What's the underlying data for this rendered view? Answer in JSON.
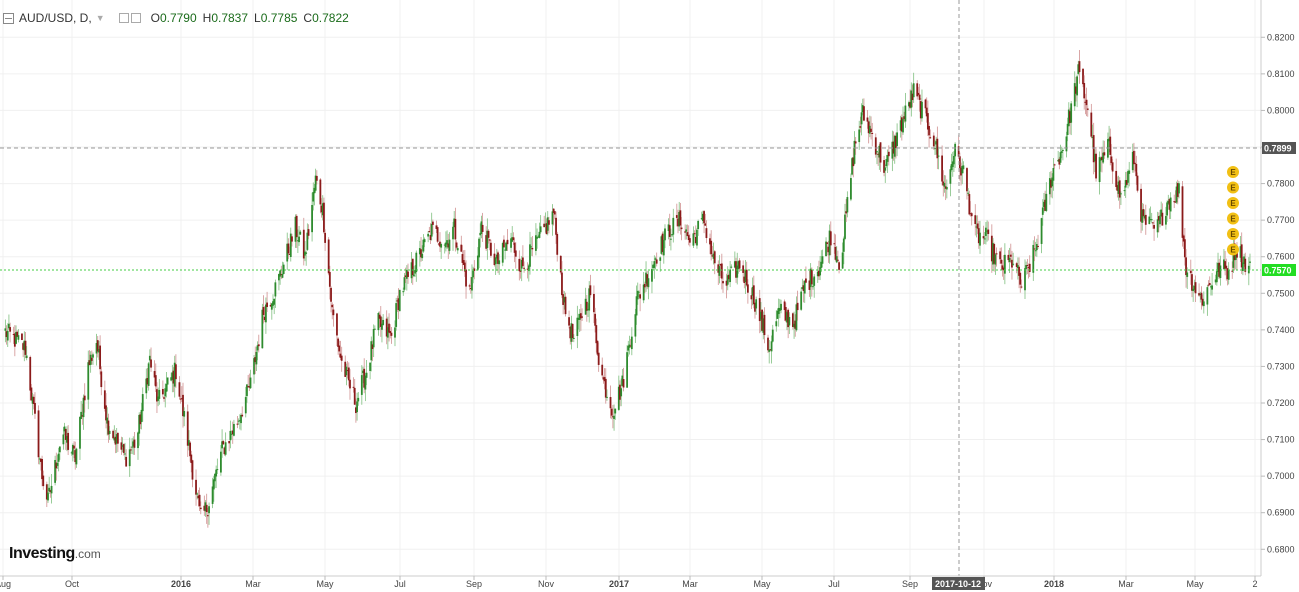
{
  "header": {
    "symbol": "AUD/USD, D,",
    "open_label": "O",
    "open": "0.7790",
    "high_label": "H",
    "high": "0.7837",
    "low_label": "L",
    "low": "0.7785",
    "close_label": "C",
    "close": "0.7822"
  },
  "logo": {
    "brand": "Investing",
    "suffix": ".com"
  },
  "colors": {
    "up": "#2e8b2e",
    "down": "#8b1a1a",
    "current_line": "#44cc44",
    "current_tag": "#22dd22",
    "crosshair": "#999999",
    "earnings_badge": "#f2c014"
  },
  "crosshair": {
    "price_label": "0.7899",
    "date_label": "2017-10-12"
  },
  "earnings_badges": [
    "E",
    "E",
    "E",
    "E",
    "E",
    "E"
  ],
  "chart_data": {
    "type": "candlestick",
    "symbol": "AUD/USD",
    "interval": "D",
    "ylim": [
      0.675,
      0.823
    ],
    "y_ticks": [
      "0.8200",
      "0.8100",
      "0.8000",
      "0.7900",
      "0.7800",
      "0.7700",
      "0.7600",
      "0.7500",
      "0.7400",
      "0.7300",
      "0.7200",
      "0.7100",
      "0.7000",
      "0.6900",
      "0.6800"
    ],
    "x_ticks": [
      "Aug",
      "Oct",
      "2016",
      "Mar",
      "May",
      "Jul",
      "Sep",
      "Nov",
      "2017",
      "Mar",
      "May",
      "Jul",
      "Sep",
      "Nov",
      "2018",
      "Mar",
      "May",
      "2"
    ],
    "current_price": 0.757,
    "current_price_label": "0.7570",
    "crosshair_price": 0.7899,
    "crosshair_date": "2017-10-12",
    "close_path": [
      [
        "2015-08-01",
        0.74
      ],
      [
        "2015-08-20",
        0.735
      ],
      [
        "2015-09-03",
        0.7
      ],
      [
        "2015-09-08",
        0.693
      ],
      [
        "2015-09-20",
        0.712
      ],
      [
        "2015-10-01",
        0.705
      ],
      [
        "2015-10-12",
        0.73
      ],
      [
        "2015-10-19",
        0.737
      ],
      [
        "2015-10-28",
        0.715
      ],
      [
        "2015-11-12",
        0.705
      ],
      [
        "2015-11-22",
        0.71
      ],
      [
        "2015-12-03",
        0.732
      ],
      [
        "2015-12-10",
        0.72
      ],
      [
        "2015-12-25",
        0.729
      ],
      [
        "2016-01-05",
        0.708
      ],
      [
        "2016-01-15",
        0.688
      ],
      [
        "2016-01-21",
        0.692
      ],
      [
        "2016-02-02",
        0.707
      ],
      [
        "2016-02-15",
        0.715
      ],
      [
        "2016-02-26",
        0.725
      ],
      [
        "2016-03-08",
        0.745
      ],
      [
        "2016-03-19",
        0.752
      ],
      [
        "2016-04-04",
        0.768
      ],
      [
        "2016-04-12",
        0.76
      ],
      [
        "2016-04-21",
        0.781
      ],
      [
        "2016-04-27",
        0.773
      ],
      [
        "2016-05-05",
        0.745
      ],
      [
        "2016-05-13",
        0.731
      ],
      [
        "2016-05-25",
        0.72
      ],
      [
        "2016-06-04",
        0.73
      ],
      [
        "2016-06-12",
        0.742
      ],
      [
        "2016-06-24",
        0.738
      ],
      [
        "2016-07-01",
        0.75
      ],
      [
        "2016-07-14",
        0.758
      ],
      [
        "2016-07-28",
        0.767
      ],
      [
        "2016-08-09",
        0.764
      ],
      [
        "2016-08-16",
        0.768
      ],
      [
        "2016-08-29",
        0.75
      ],
      [
        "2016-09-08",
        0.768
      ],
      [
        "2016-09-21",
        0.758
      ],
      [
        "2016-10-03",
        0.765
      ],
      [
        "2016-10-12",
        0.757
      ],
      [
        "2016-10-24",
        0.763
      ],
      [
        "2016-11-08",
        0.772
      ],
      [
        "2016-11-17",
        0.746
      ],
      [
        "2016-11-25",
        0.737
      ],
      [
        "2016-12-02",
        0.745
      ],
      [
        "2016-12-09",
        0.75
      ],
      [
        "2016-12-18",
        0.728
      ],
      [
        "2016-12-28",
        0.718
      ],
      [
        "2017-01-05",
        0.725
      ],
      [
        "2017-01-17",
        0.748
      ],
      [
        "2017-02-02",
        0.76
      ],
      [
        "2017-02-13",
        0.767
      ],
      [
        "2017-02-24",
        0.77
      ],
      [
        "2017-03-03",
        0.764
      ],
      [
        "2017-03-15",
        0.77
      ],
      [
        "2017-03-23",
        0.759
      ],
      [
        "2017-04-02",
        0.752
      ],
      [
        "2017-04-14",
        0.758
      ],
      [
        "2017-04-26",
        0.749
      ],
      [
        "2017-05-09",
        0.735
      ],
      [
        "2017-05-17",
        0.745
      ],
      [
        "2017-05-30",
        0.742
      ],
      [
        "2017-06-08",
        0.752
      ],
      [
        "2017-06-20",
        0.757
      ],
      [
        "2017-06-30",
        0.766
      ],
      [
        "2017-07-08",
        0.758
      ],
      [
        "2017-07-20",
        0.79
      ],
      [
        "2017-07-27",
        0.799
      ],
      [
        "2017-08-02",
        0.795
      ],
      [
        "2017-08-15",
        0.784
      ],
      [
        "2017-08-25",
        0.793
      ],
      [
        "2017-09-08",
        0.805
      ],
      [
        "2017-09-15",
        0.8
      ],
      [
        "2017-09-25",
        0.792
      ],
      [
        "2017-10-05",
        0.778
      ],
      [
        "2017-10-12",
        0.789
      ],
      [
        "2017-10-20",
        0.783
      ],
      [
        "2017-10-30",
        0.766
      ],
      [
        "2017-11-08",
        0.765
      ],
      [
        "2017-11-20",
        0.757
      ],
      [
        "2017-12-01",
        0.759
      ],
      [
        "2017-12-08",
        0.752
      ],
      [
        "2017-12-20",
        0.762
      ],
      [
        "2018-01-03",
        0.783
      ],
      [
        "2018-01-12",
        0.79
      ],
      [
        "2018-01-25",
        0.81
      ],
      [
        "2018-02-02",
        0.801
      ],
      [
        "2018-02-09",
        0.783
      ],
      [
        "2018-02-20",
        0.79
      ],
      [
        "2018-03-02",
        0.776
      ],
      [
        "2018-03-13",
        0.787
      ],
      [
        "2018-03-20",
        0.77
      ],
      [
        "2018-04-01",
        0.767
      ],
      [
        "2018-04-10",
        0.775
      ],
      [
        "2018-04-20",
        0.778
      ],
      [
        "2018-04-26",
        0.757
      ],
      [
        "2018-05-09",
        0.748
      ],
      [
        "2018-05-17",
        0.753
      ],
      [
        "2018-05-25",
        0.757
      ],
      [
        "2018-06-02",
        0.756
      ],
      [
        "2018-06-07",
        0.763
      ],
      [
        "2018-06-12",
        0.76
      ],
      [
        "2018-06-18",
        0.757
      ]
    ]
  }
}
